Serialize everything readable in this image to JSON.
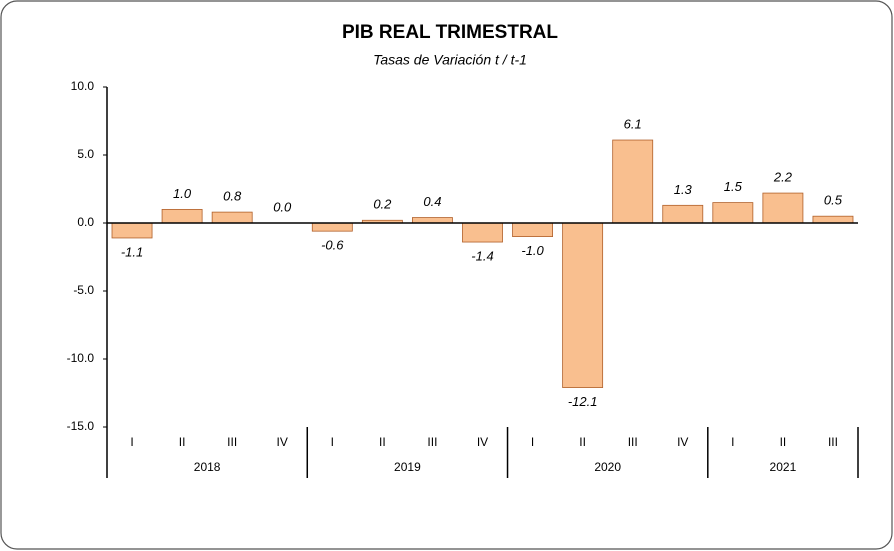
{
  "chart_data": {
    "type": "bar",
    "title": "PIB REAL TRIMESTRAL",
    "subtitle": "Tasas de Variación t / t-1",
    "category_groups": [
      {
        "name": "2018",
        "categories": [
          "I",
          "II",
          "III",
          "IV"
        ]
      },
      {
        "name": "2019",
        "categories": [
          "I",
          "II",
          "III",
          "IV"
        ]
      },
      {
        "name": "2020",
        "categories": [
          "I",
          "II",
          "III",
          "IV"
        ]
      },
      {
        "name": "2021",
        "categories": [
          "I",
          "II",
          "III"
        ]
      }
    ],
    "values": [
      -1.1,
      1.0,
      0.8,
      0.0,
      -0.6,
      0.2,
      0.4,
      -1.4,
      -1.0,
      -12.1,
      6.1,
      1.3,
      1.5,
      2.2,
      0.5
    ],
    "value_labels": [
      "-1.1",
      "1.0",
      "0.8",
      "0.0",
      "-0.6",
      "0.2",
      "0.4",
      "-1.4",
      "-1.0",
      "-12.1",
      "6.1",
      "1.3",
      "1.5",
      "2.2",
      "0.5"
    ],
    "color": "#f9bf8f",
    "ylim": [
      -15,
      10
    ],
    "yticks": [
      {
        "value": 10,
        "label": "10.0"
      },
      {
        "value": 5,
        "label": "5.0"
      },
      {
        "value": 0,
        "label": "0.0"
      },
      {
        "value": -5,
        "label": "-5.0"
      },
      {
        "value": -10,
        "label": "-10.0"
      },
      {
        "value": -15,
        "label": "-15.0"
      }
    ],
    "grid": false
  }
}
